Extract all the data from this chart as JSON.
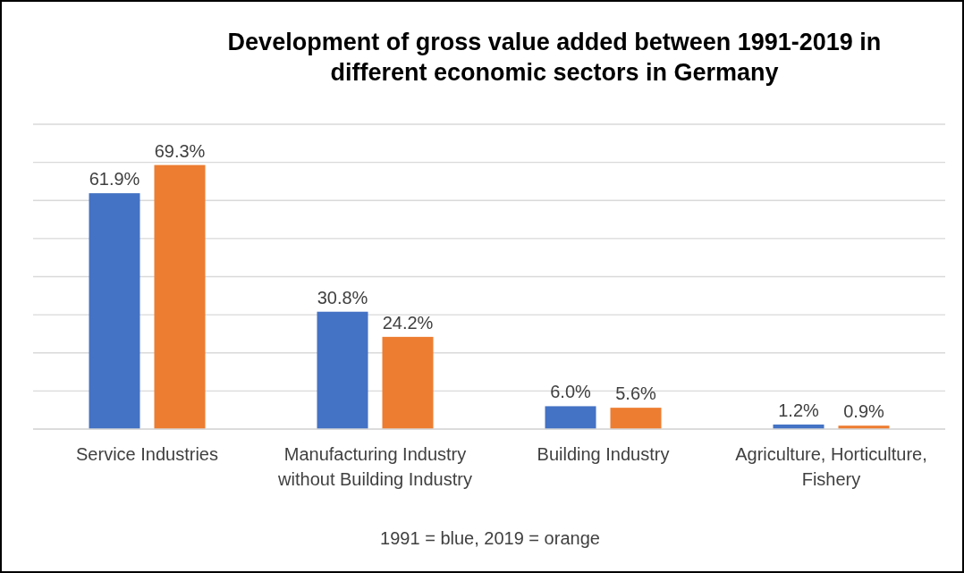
{
  "chart_data": {
    "type": "bar",
    "title": "Development of gross value added between 1991-2019 in different economic sectors in Germany",
    "categories": [
      "Service Industries",
      "Manufacturing Industry without Building Industry",
      "Building Industry",
      "Agriculture, Horticulture, Fishery"
    ],
    "series": [
      {
        "color": "#4472c4",
        "values": [
          61.9,
          30.8,
          6.0,
          1.2
        ],
        "value_labels": [
          "61.9%",
          "30.8%",
          "6.0%",
          "1.2%"
        ]
      },
      {
        "color": "#ed7d31",
        "values": [
          69.3,
          24.2,
          5.6,
          0.9
        ],
        "value_labels": [
          "69.3%",
          "24.2%",
          "5.6%",
          "0.9%"
        ]
      }
    ],
    "ylim": [
      0,
      80
    ],
    "yticks": [
      {
        "value": 0,
        "label": null
      },
      {
        "value": 10,
        "label": null
      },
      {
        "value": 20,
        "label": null
      },
      {
        "value": 30,
        "label": null
      },
      {
        "value": 40,
        "label": null
      },
      {
        "value": 50,
        "label": null
      },
      {
        "value": 60,
        "label": null
      },
      {
        "value": 70,
        "label": null
      },
      {
        "value": 80,
        "label": null
      }
    ],
    "tick_labels": "x",
    "grid": "y",
    "annotations": [
      "1991 = blue, 2019 = orange"
    ]
  }
}
